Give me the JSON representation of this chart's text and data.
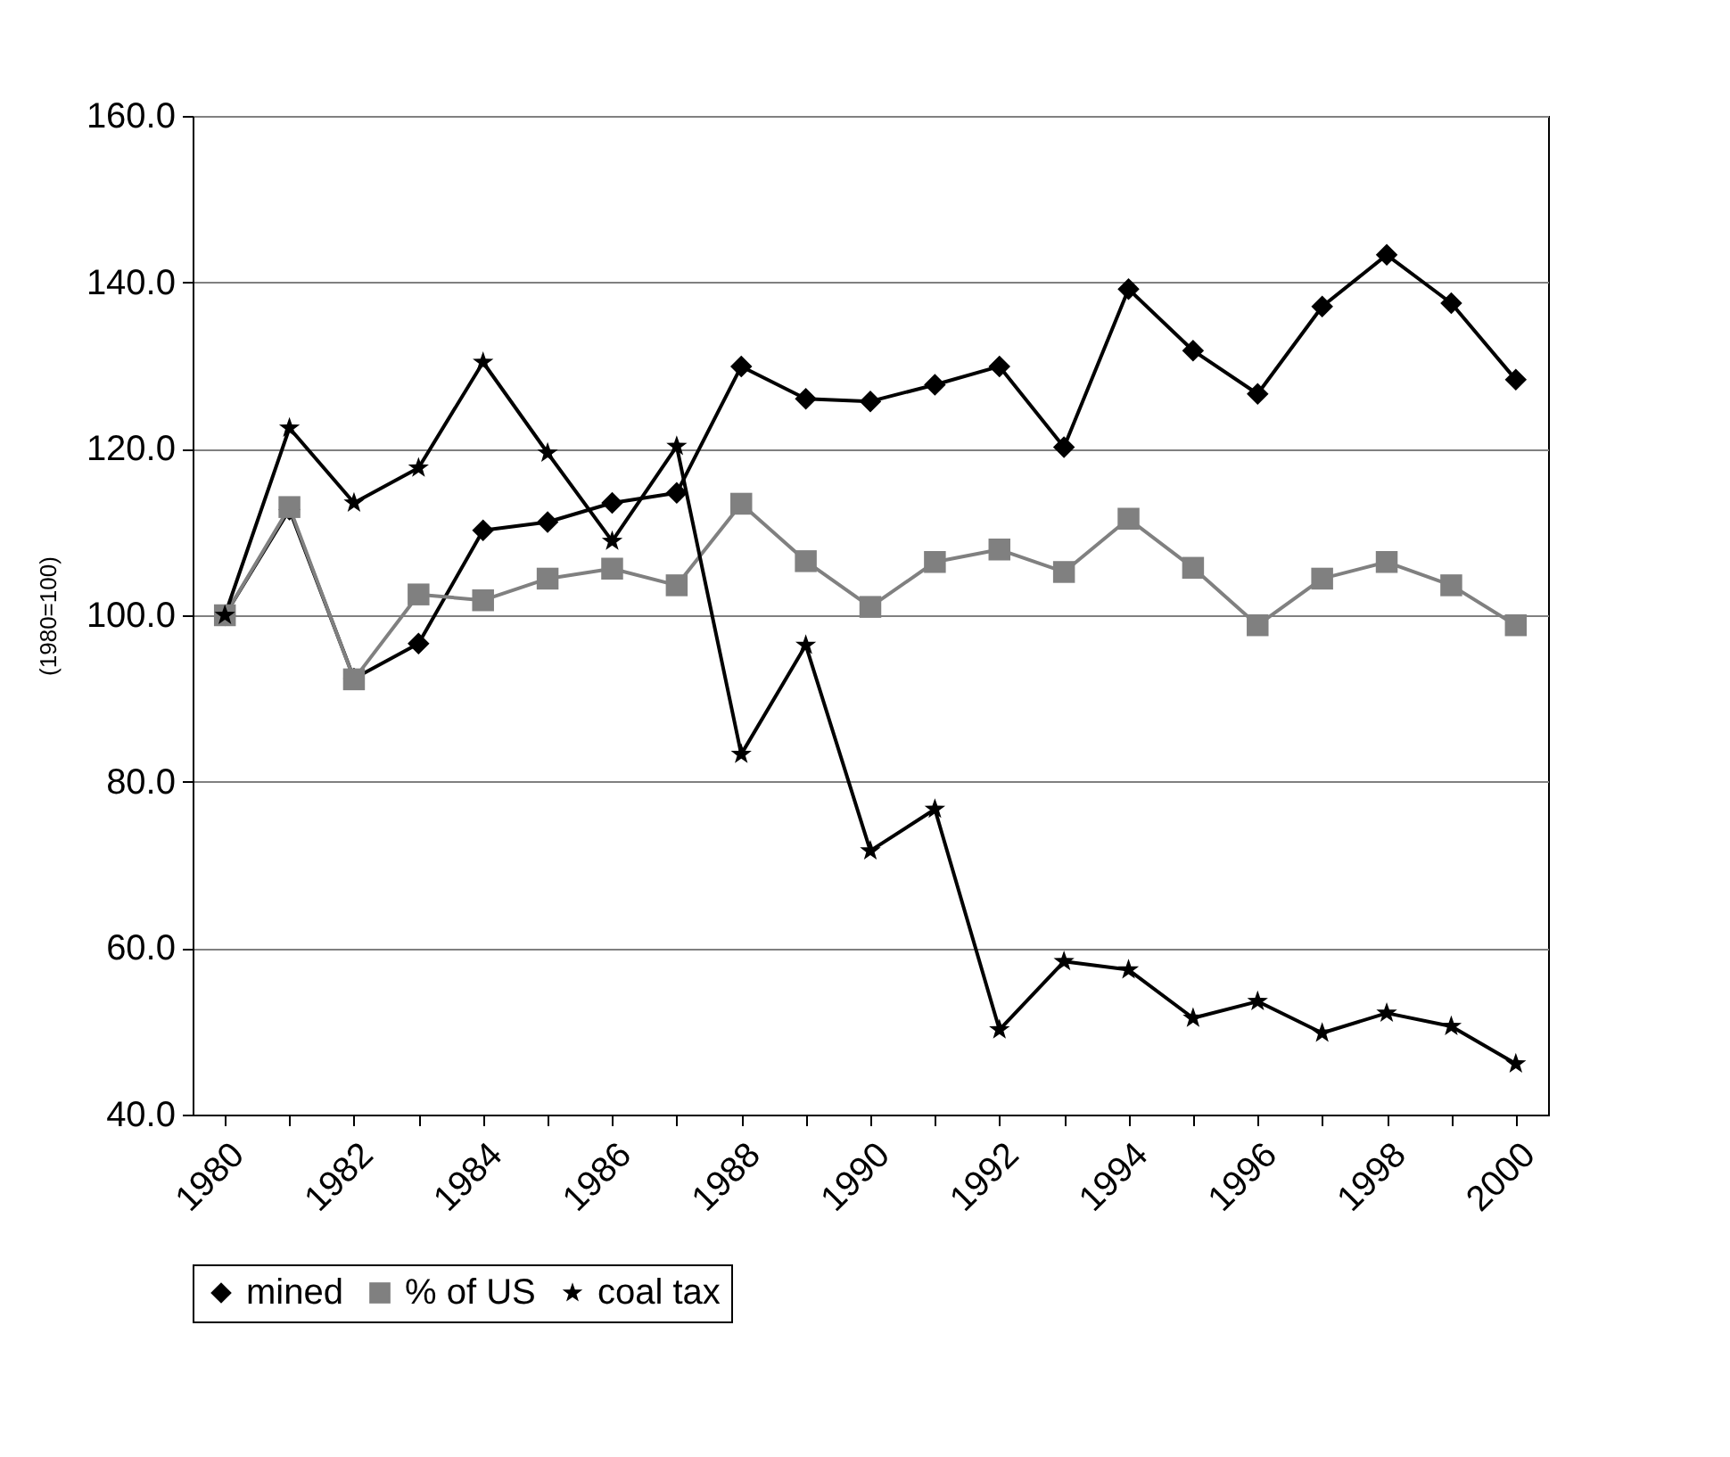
{
  "chart_data": {
    "type": "line",
    "ylabel": "(1980=100)",
    "categories": [
      "1980",
      null,
      "1982",
      null,
      "1984",
      null,
      "1986",
      null,
      "1988",
      null,
      "1990",
      null,
      "1992",
      null,
      "1994",
      null,
      "1996",
      null,
      "1998",
      null,
      "2000"
    ],
    "series": [
      {
        "name": "mined",
        "color": "#000000",
        "marker": "diamond",
        "values": [
          100.0,
          112.7,
          92.4,
          96.6,
          110.2,
          111.2,
          113.5,
          114.7,
          129.9,
          126.0,
          125.7,
          127.7,
          129.9,
          120.2,
          139.2,
          131.8,
          126.6,
          137.1,
          143.3,
          137.5,
          128.3
        ]
      },
      {
        "name": "% of US",
        "color": "#808080",
        "marker": "square",
        "values": [
          100.0,
          113.0,
          92.3,
          102.5,
          101.8,
          104.4,
          105.6,
          103.6,
          113.4,
          106.5,
          101.0,
          106.4,
          107.9,
          105.2,
          111.6,
          105.7,
          98.8,
          104.4,
          106.4,
          103.6,
          98.8
        ]
      },
      {
        "name": "coal tax",
        "color": "#000000",
        "marker": "star",
        "values": [
          100.0,
          122.5,
          113.5,
          117.7,
          130.4,
          119.5,
          108.9,
          120.3,
          83.3,
          96.4,
          71.7,
          76.7,
          50.2,
          58.4,
          57.4,
          51.6,
          53.6,
          49.8,
          52.2,
          50.6,
          46.1
        ]
      }
    ],
    "ylim": [
      40,
      160
    ],
    "yticks": [
      {
        "value": 40,
        "label": "40.0"
      },
      {
        "value": 60,
        "label": "60.0"
      },
      {
        "value": 80,
        "label": "80.0"
      },
      {
        "value": 100,
        "label": "100.0"
      },
      {
        "value": 120,
        "label": "120.0"
      },
      {
        "value": 140,
        "label": "140.0"
      },
      {
        "value": 160,
        "label": "160.0"
      }
    ],
    "grid": "y",
    "legend": "bottom",
    "line_style": "solid"
  }
}
